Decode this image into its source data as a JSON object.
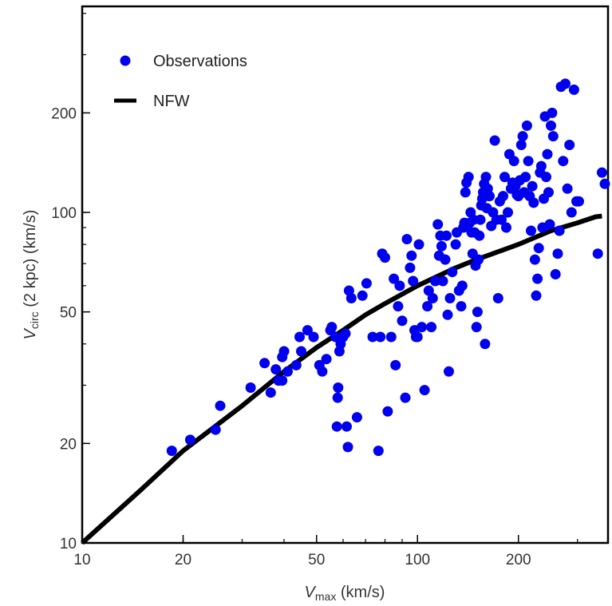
{
  "chart_data": {
    "type": "scatter",
    "xscale": "log",
    "yscale": "log",
    "xlim": [
      10,
      370
    ],
    "ylim": [
      10,
      420
    ],
    "x_ticks": [
      {
        "value": 10,
        "label": "10"
      },
      {
        "value": 20,
        "label": "20"
      },
      {
        "value": 50,
        "label": "50"
      },
      {
        "value": 100,
        "label": "100"
      },
      {
        "value": 200,
        "label": "200"
      }
    ],
    "y_ticks": [
      {
        "value": 10,
        "label": "10"
      },
      {
        "value": 20,
        "label": "20"
      },
      {
        "value": 50,
        "label": "50"
      },
      {
        "value": 100,
        "label": "100"
      },
      {
        "value": 200,
        "label": "200"
      }
    ],
    "xlabel": {
      "main": "V",
      "sub": "max",
      "rest": " (km/s)"
    },
    "ylabel": {
      "main": "V",
      "sub": "circ",
      "rest": " (2 kpc) (km/s)"
    },
    "legend_position": "top-left",
    "grid": false,
    "series": [
      {
        "name": "Observations",
        "kind": "scatter",
        "color": "#0000ee",
        "points": [
          [
            18.5,
            19
          ],
          [
            21,
            20.5
          ],
          [
            25,
            22
          ],
          [
            25.8,
            26
          ],
          [
            31.8,
            29.5
          ],
          [
            35,
            35
          ],
          [
            36.5,
            28.5
          ],
          [
            37.8,
            33.5
          ],
          [
            38.5,
            31
          ],
          [
            39.5,
            31
          ],
          [
            39.5,
            36.5
          ],
          [
            40,
            38
          ],
          [
            41,
            33
          ],
          [
            43.5,
            34.5
          ],
          [
            44.5,
            42
          ],
          [
            45,
            38
          ],
          [
            47,
            44
          ],
          [
            49,
            42
          ],
          [
            51,
            34.5
          ],
          [
            52,
            33
          ],
          [
            53.5,
            36
          ],
          [
            55,
            44
          ],
          [
            55.5,
            45
          ],
          [
            57,
            42
          ],
          [
            57.5,
            22.5
          ],
          [
            57.8,
            27.5
          ],
          [
            58,
            29.5
          ],
          [
            58.5,
            38
          ],
          [
            59,
            40
          ],
          [
            60,
            42
          ],
          [
            61,
            43
          ],
          [
            61.5,
            22.5
          ],
          [
            62,
            19.5
          ],
          [
            62.5,
            58
          ],
          [
            63.5,
            55
          ],
          [
            66,
            24
          ],
          [
            68.5,
            56
          ],
          [
            70.5,
            61
          ],
          [
            73.5,
            42
          ],
          [
            76.5,
            19
          ],
          [
            77.5,
            42
          ],
          [
            78.5,
            75
          ],
          [
            80,
            73
          ],
          [
            81.5,
            25
          ],
          [
            83.5,
            42
          ],
          [
            85,
            63
          ],
          [
            86,
            34.5
          ],
          [
            87.5,
            52
          ],
          [
            88.5,
            60
          ],
          [
            90,
            47
          ],
          [
            92,
            27.5
          ],
          [
            93,
            83
          ],
          [
            95,
            68
          ],
          [
            96,
            74
          ],
          [
            97,
            62
          ],
          [
            98,
            44
          ],
          [
            99,
            42
          ],
          [
            100,
            42
          ],
          [
            101,
            80
          ],
          [
            103,
            45
          ],
          [
            105,
            29
          ],
          [
            107,
            52
          ],
          [
            108,
            58
          ],
          [
            110,
            45
          ],
          [
            111,
            55
          ],
          [
            113,
            62
          ],
          [
            115,
            92
          ],
          [
            116,
            74
          ],
          [
            117,
            85
          ],
          [
            118,
            79
          ],
          [
            119,
            62
          ],
          [
            121,
            72
          ],
          [
            122,
            85
          ],
          [
            123,
            49
          ],
          [
            124,
            33
          ],
          [
            125,
            55
          ],
          [
            127,
            66
          ],
          [
            130,
            80
          ],
          [
            131,
            87
          ],
          [
            133,
            58
          ],
          [
            135,
            52
          ],
          [
            136,
            60
          ],
          [
            137,
            90
          ],
          [
            138,
            93
          ],
          [
            139,
            115
          ],
          [
            140,
            123
          ],
          [
            142,
            128
          ],
          [
            143,
            93
          ],
          [
            144,
            100
          ],
          [
            145,
            87
          ],
          [
            146,
            75
          ],
          [
            147,
            95
          ],
          [
            148,
            87
          ],
          [
            149,
            69
          ],
          [
            150,
            45
          ],
          [
            151,
            50
          ],
          [
            152,
            72
          ],
          [
            153,
            85
          ],
          [
            154,
            95
          ],
          [
            155,
            105
          ],
          [
            156,
            110
          ],
          [
            157,
            115
          ],
          [
            158,
            122
          ],
          [
            159,
            40
          ],
          [
            160,
            128
          ],
          [
            161,
            103
          ],
          [
            162,
            118
          ],
          [
            164,
            112
          ],
          [
            166,
            91
          ],
          [
            168,
            100
          ],
          [
            170,
            165
          ],
          [
            172,
            95
          ],
          [
            174,
            55
          ],
          [
            176,
            108
          ],
          [
            178,
            95
          ],
          [
            180,
            112
          ],
          [
            182,
            128
          ],
          [
            184,
            90
          ],
          [
            186,
            100
          ],
          [
            188,
            150
          ],
          [
            190,
            118
          ],
          [
            192,
            123
          ],
          [
            194,
            143
          ],
          [
            196,
            120
          ],
          [
            198,
            113
          ],
          [
            200,
            112
          ],
          [
            202,
            125
          ],
          [
            204,
            160
          ],
          [
            206,
            170
          ],
          [
            208,
            115
          ],
          [
            210,
            128
          ],
          [
            212,
            183
          ],
          [
            214,
            143
          ],
          [
            216,
            112
          ],
          [
            218,
            88
          ],
          [
            220,
            120
          ],
          [
            222,
            107
          ],
          [
            224,
            72
          ],
          [
            226,
            56
          ],
          [
            228,
            63
          ],
          [
            230,
            78
          ],
          [
            232,
            132
          ],
          [
            234,
            138
          ],
          [
            236,
            90
          ],
          [
            238,
            110
          ],
          [
            240,
            195
          ],
          [
            242,
            128
          ],
          [
            244,
            150
          ],
          [
            246,
            115
          ],
          [
            248,
            92
          ],
          [
            250,
            183
          ],
          [
            252,
            200
          ],
          [
            254,
            170
          ],
          [
            258,
            65
          ],
          [
            262,
            75
          ],
          [
            265,
            88
          ],
          [
            268,
            240
          ],
          [
            272,
            143
          ],
          [
            276,
            245
          ],
          [
            280,
            118
          ],
          [
            284,
            160
          ],
          [
            288,
            100
          ],
          [
            293,
            235
          ],
          [
            298,
            108
          ],
          [
            303,
            108
          ],
          [
            345,
            75
          ],
          [
            355,
            132
          ],
          [
            362,
            122
          ]
        ]
      },
      {
        "name": "NFW",
        "kind": "line",
        "color": "#000000",
        "points": [
          [
            10,
            10
          ],
          [
            15,
            14.5
          ],
          [
            20,
            19
          ],
          [
            30,
            26
          ],
          [
            40,
            33
          ],
          [
            50,
            39
          ],
          [
            60,
            44
          ],
          [
            70,
            49
          ],
          [
            80,
            53
          ],
          [
            100,
            60
          ],
          [
            130,
            68
          ],
          [
            150,
            72
          ],
          [
            200,
            80
          ],
          [
            250,
            88
          ],
          [
            300,
            93
          ],
          [
            340,
            97
          ],
          [
            355,
            97.5
          ]
        ]
      }
    ]
  }
}
